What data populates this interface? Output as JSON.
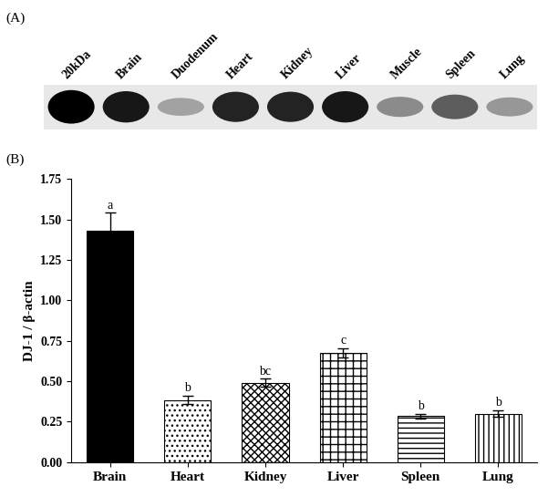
{
  "chart_data": [
    {
      "type": "blot",
      "title": "(A)",
      "categories": [
        "20kDa",
        "Brain",
        "Duodenum",
        "Heart",
        "Kidney",
        "Liver",
        "Muscle",
        "Spleen",
        "Lung"
      ],
      "values": [
        1.0,
        0.9,
        0.3,
        0.85,
        0.85,
        0.9,
        0.4,
        0.6,
        0.35
      ],
      "tick_labels": false
    },
    {
      "type": "bar",
      "title": "(B)",
      "categories": [
        "Brain",
        "Heart",
        "Kidney",
        "Liver",
        "Spleen",
        "Lung"
      ],
      "values": [
        1.43,
        0.385,
        0.49,
        0.675,
        0.285,
        0.3
      ],
      "errors": [
        0.11,
        0.025,
        0.025,
        0.03,
        0.015,
        0.02
      ],
      "annotations": [
        "a",
        "b",
        "bc",
        "c",
        "b",
        "b"
      ],
      "colors": [
        "#000000",
        "#ffffff",
        "#ffffff",
        "#ffffff",
        "#ffffff",
        "#ffffff"
      ],
      "y_label": "DJ-1 / β-actin",
      "ylim": [
        0,
        1.75
      ],
      "yticks": [
        {
          "value": 0,
          "label": "0.00"
        },
        {
          "value": 0.25,
          "label": "0.25"
        },
        {
          "value": 0.5,
          "label": "0.50"
        },
        {
          "value": 0.75,
          "label": "0.75"
        },
        {
          "value": 1.0,
          "label": "1.00"
        },
        {
          "value": 1.25,
          "label": "1.25"
        },
        {
          "value": 1.5,
          "label": "1.50"
        },
        {
          "value": 1.75,
          "label": "1.75"
        }
      ],
      "grid": false
    }
  ]
}
